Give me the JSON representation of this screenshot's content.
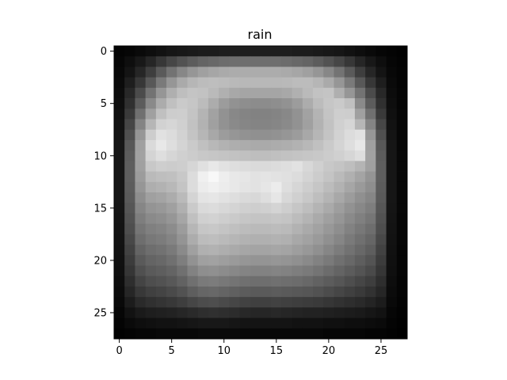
{
  "chart_data": {
    "type": "heatmap",
    "title": "rain",
    "xlabel": "",
    "ylabel": "",
    "colormap": "gray",
    "vmin": 0,
    "vmax": 255,
    "xlim": [
      -0.5,
      27.5
    ],
    "ylim": [
      27.5,
      -0.5
    ],
    "grid": false,
    "x_ticks": [
      0,
      5,
      10,
      15,
      20,
      25
    ],
    "y_ticks": [
      0,
      5,
      10,
      15,
      20,
      25
    ],
    "x_tick_labels": [
      "0",
      "5",
      "10",
      "15",
      "20",
      "25"
    ],
    "y_tick_labels": [
      "0",
      "5",
      "10",
      "15",
      "20",
      "25"
    ],
    "values": [
      [
        4,
        6,
        10,
        14,
        18,
        22,
        24,
        26,
        28,
        28,
        30,
        30,
        30,
        30,
        30,
        30,
        30,
        28,
        28,
        26,
        24,
        22,
        18,
        14,
        10,
        6,
        4,
        2
      ],
      [
        6,
        14,
        24,
        38,
        55,
        70,
        82,
        92,
        100,
        104,
        108,
        110,
        110,
        110,
        110,
        110,
        108,
        104,
        100,
        92,
        82,
        70,
        55,
        38,
        24,
        14,
        6,
        3
      ],
      [
        8,
        20,
        38,
        62,
        90,
        115,
        135,
        150,
        160,
        166,
        170,
        172,
        172,
        172,
        172,
        172,
        170,
        166,
        160,
        150,
        135,
        115,
        90,
        62,
        38,
        20,
        8,
        4
      ],
      [
        10,
        30,
        55,
        88,
        122,
        150,
        170,
        182,
        188,
        190,
        188,
        185,
        184,
        184,
        184,
        184,
        185,
        188,
        188,
        182,
        170,
        150,
        122,
        88,
        55,
        30,
        10,
        4
      ],
      [
        12,
        40,
        75,
        115,
        150,
        175,
        190,
        196,
        194,
        186,
        176,
        168,
        165,
        165,
        165,
        165,
        168,
        176,
        186,
        194,
        196,
        175,
        150,
        115,
        75,
        40,
        12,
        5
      ],
      [
        14,
        48,
        92,
        138,
        172,
        192,
        202,
        198,
        188,
        172,
        156,
        146,
        142,
        140,
        140,
        142,
        146,
        156,
        172,
        188,
        198,
        202,
        192,
        138,
        92,
        48,
        14,
        5
      ],
      [
        16,
        58,
        112,
        160,
        192,
        205,
        206,
        196,
        180,
        162,
        146,
        136,
        132,
        130,
        130,
        132,
        136,
        146,
        162,
        180,
        196,
        206,
        205,
        160,
        112,
        58,
        16,
        6
      ],
      [
        18,
        70,
        132,
        182,
        210,
        214,
        208,
        194,
        178,
        160,
        146,
        138,
        134,
        132,
        132,
        134,
        138,
        146,
        160,
        178,
        194,
        208,
        214,
        182,
        132,
        70,
        18,
        6
      ],
      [
        20,
        80,
        150,
        205,
        225,
        220,
        210,
        196,
        182,
        168,
        156,
        150,
        146,
        144,
        144,
        146,
        150,
        156,
        168,
        182,
        196,
        210,
        220,
        225,
        150,
        80,
        20,
        6
      ],
      [
        22,
        88,
        160,
        218,
        232,
        222,
        212,
        202,
        192,
        184,
        178,
        174,
        172,
        170,
        170,
        172,
        174,
        178,
        184,
        192,
        202,
        212,
        222,
        232,
        160,
        88,
        22,
        7
      ],
      [
        22,
        92,
        162,
        212,
        222,
        214,
        208,
        204,
        200,
        198,
        196,
        194,
        192,
        190,
        190,
        192,
        194,
        196,
        198,
        200,
        204,
        208,
        214,
        222,
        162,
        92,
        22,
        7
      ],
      [
        22,
        94,
        160,
        200,
        206,
        204,
        206,
        214,
        224,
        232,
        226,
        222,
        220,
        218,
        218,
        220,
        222,
        226,
        216,
        208,
        200,
        196,
        190,
        180,
        160,
        94,
        22,
        7
      ],
      [
        22,
        94,
        156,
        186,
        190,
        192,
        200,
        220,
        240,
        248,
        238,
        232,
        230,
        226,
        228,
        226,
        224,
        220,
        212,
        204,
        196,
        186,
        176,
        164,
        148,
        94,
        22,
        7
      ],
      [
        22,
        92,
        150,
        174,
        178,
        184,
        196,
        220,
        236,
        240,
        236,
        232,
        228,
        226,
        230,
        236,
        222,
        214,
        206,
        198,
        188,
        178,
        166,
        154,
        142,
        92,
        22,
        7
      ],
      [
        22,
        90,
        142,
        160,
        164,
        172,
        186,
        212,
        228,
        230,
        226,
        222,
        218,
        216,
        222,
        230,
        216,
        208,
        200,
        190,
        180,
        168,
        156,
        144,
        134,
        90,
        22,
        7
      ],
      [
        21,
        86,
        134,
        148,
        152,
        160,
        176,
        202,
        218,
        220,
        216,
        212,
        208,
        206,
        208,
        212,
        206,
        198,
        190,
        180,
        170,
        158,
        146,
        136,
        126,
        86,
        21,
        7
      ],
      [
        20,
        82,
        126,
        138,
        142,
        150,
        166,
        192,
        208,
        210,
        206,
        202,
        198,
        196,
        196,
        198,
        196,
        188,
        180,
        170,
        160,
        150,
        138,
        128,
        118,
        82,
        20,
        6
      ],
      [
        19,
        78,
        118,
        128,
        132,
        140,
        156,
        182,
        198,
        200,
        196,
        192,
        188,
        186,
        186,
        188,
        186,
        178,
        170,
        162,
        152,
        142,
        130,
        120,
        110,
        78,
        19,
        6
      ],
      [
        18,
        72,
        110,
        120,
        124,
        132,
        148,
        172,
        188,
        190,
        186,
        182,
        178,
        176,
        176,
        178,
        176,
        168,
        162,
        154,
        144,
        134,
        122,
        112,
        102,
        72,
        18,
        6
      ],
      [
        17,
        66,
        100,
        110,
        114,
        122,
        138,
        160,
        176,
        178,
        174,
        170,
        166,
        164,
        164,
        166,
        164,
        158,
        152,
        144,
        134,
        124,
        114,
        104,
        94,
        66,
        17,
        5
      ],
      [
        16,
        60,
        90,
        100,
        104,
        112,
        126,
        146,
        160,
        162,
        158,
        154,
        150,
        148,
        148,
        150,
        148,
        144,
        138,
        130,
        122,
        112,
        104,
        94,
        84,
        60,
        16,
        5
      ],
      [
        15,
        54,
        80,
        90,
        94,
        100,
        112,
        130,
        142,
        144,
        140,
        136,
        132,
        130,
        130,
        132,
        130,
        126,
        122,
        116,
        108,
        100,
        92,
        84,
        74,
        54,
        15,
        5
      ],
      [
        13,
        46,
        68,
        78,
        82,
        88,
        98,
        112,
        122,
        124,
        120,
        116,
        112,
        110,
        110,
        112,
        110,
        108,
        104,
        98,
        92,
        86,
        78,
        70,
        62,
        46,
        13,
        4
      ],
      [
        11,
        38,
        56,
        64,
        68,
        74,
        82,
        94,
        102,
        104,
        100,
        96,
        92,
        90,
        90,
        92,
        90,
        88,
        86,
        82,
        76,
        70,
        64,
        58,
        50,
        38,
        11,
        4
      ],
      [
        9,
        28,
        42,
        48,
        52,
        56,
        62,
        70,
        76,
        78,
        74,
        70,
        66,
        64,
        64,
        66,
        64,
        62,
        60,
        58,
        54,
        50,
        46,
        42,
        36,
        28,
        9,
        3
      ],
      [
        6,
        18,
        26,
        30,
        32,
        34,
        38,
        42,
        46,
        48,
        46,
        44,
        40,
        38,
        38,
        40,
        38,
        36,
        34,
        34,
        32,
        30,
        28,
        26,
        22,
        18,
        6,
        2
      ],
      [
        4,
        10,
        14,
        16,
        18,
        18,
        20,
        22,
        24,
        24,
        24,
        22,
        20,
        20,
        20,
        20,
        20,
        18,
        18,
        18,
        16,
        16,
        14,
        14,
        12,
        10,
        4,
        1
      ],
      [
        2,
        4,
        6,
        6,
        8,
        8,
        8,
        8,
        10,
        10,
        10,
        10,
        8,
        8,
        8,
        8,
        8,
        8,
        8,
        8,
        6,
        6,
        6,
        6,
        4,
        4,
        2,
        0
      ]
    ]
  }
}
